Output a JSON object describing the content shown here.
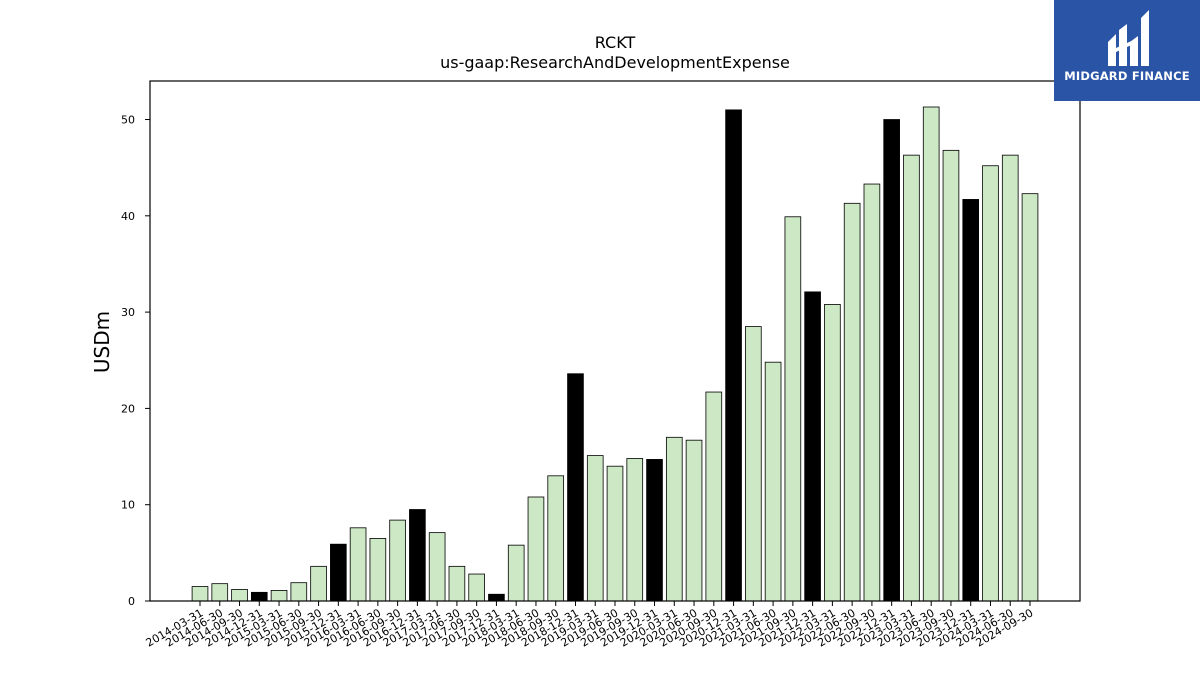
{
  "chart_data": {
    "type": "bar",
    "title": "RCKT",
    "subtitle": "us-gaap:ResearchAndDevelopmentExpense",
    "xlabel": "",
    "ylabel": "USDm",
    "ylim": [
      0,
      54
    ],
    "yticks": [
      0,
      10,
      20,
      30,
      40,
      50
    ],
    "grid": false,
    "categories": [
      "2014-03-31",
      "2014-06-30",
      "2014-09-30",
      "2014-12-31",
      "2015-03-31",
      "2015-06-30",
      "2015-09-30",
      "2015-12-31",
      "2016-03-31",
      "2016-06-30",
      "2016-09-30",
      "2016-12-31",
      "2017-03-31",
      "2017-06-30",
      "2017-09-30",
      "2017-12-31",
      "2018-03-31",
      "2018-06-30",
      "2018-09-30",
      "2018-12-31",
      "2019-03-31",
      "2019-06-30",
      "2019-09-30",
      "2019-12-31",
      "2020-03-31",
      "2020-06-30",
      "2020-09-30",
      "2020-12-31",
      "2021-03-31",
      "2021-06-30",
      "2021-09-30",
      "2021-12-31",
      "2022-03-31",
      "2022-06-30",
      "2022-09-30",
      "2022-12-31",
      "2023-03-31",
      "2023-06-30",
      "2023-09-30",
      "2023-12-31",
      "2024-03-31",
      "2024-06-30",
      "2024-09-30"
    ],
    "values": [
      1.5,
      1.8,
      1.2,
      0.9,
      1.1,
      1.9,
      3.6,
      5.9,
      7.6,
      6.5,
      8.4,
      9.5,
      7.1,
      3.6,
      2.8,
      0.7,
      5.8,
      10.8,
      13.0,
      23.6,
      15.1,
      14.0,
      14.8,
      14.7,
      17.0,
      16.7,
      21.7,
      51.0,
      28.5,
      24.8,
      39.9,
      32.1,
      30.8,
      41.3,
      43.3,
      50.0,
      46.3,
      51.3,
      46.8,
      41.7,
      45.2,
      46.3,
      42.3
    ],
    "highlight": [
      false,
      false,
      false,
      true,
      false,
      false,
      false,
      true,
      false,
      false,
      false,
      true,
      false,
      false,
      false,
      true,
      false,
      false,
      false,
      true,
      false,
      false,
      false,
      true,
      false,
      false,
      false,
      true,
      false,
      false,
      false,
      true,
      false,
      false,
      false,
      true,
      false,
      false,
      false,
      true,
      false,
      false,
      false
    ],
    "colors": {
      "bar": "#cde8c5",
      "highlight_bar": "#000000",
      "edge": "#000000"
    }
  },
  "logo": {
    "text": "MIDGARD FINANCE",
    "background": "#2a55a6"
  }
}
